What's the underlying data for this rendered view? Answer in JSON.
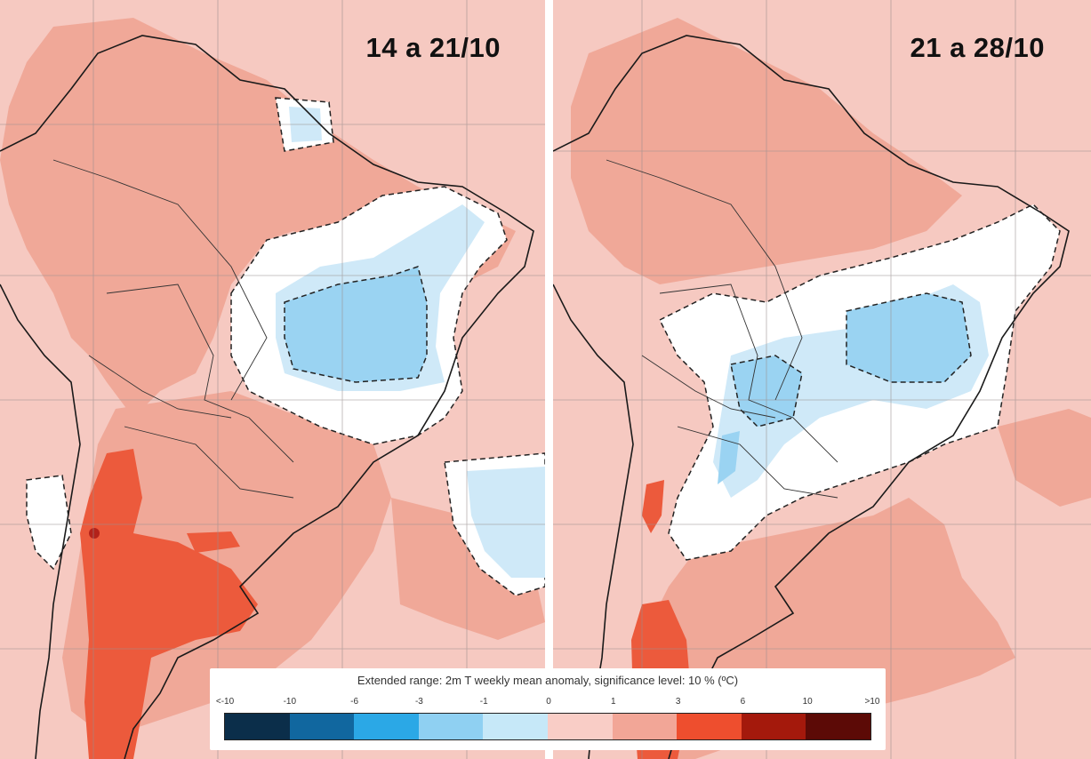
{
  "panels": [
    {
      "title": "14 a 21/10"
    },
    {
      "title": "21 a 28/10"
    }
  ],
  "legend": {
    "title": "Extended range: 2m T weekly mean anomaly, significance level: 10 % (ºC)",
    "ticks": [
      "<-10",
      "-10",
      "-6",
      "-3",
      "-1",
      "0",
      "1",
      "3",
      "6",
      "10",
      ">10"
    ],
    "colors": [
      "#0b2e4a",
      "#11679f",
      "#2ba8e6",
      "#8fd0f2",
      "#c6e8f8",
      "#f9cdc6",
      "#f2a697",
      "#ee4e2e",
      "#a4190c",
      "#5c0a06"
    ]
  },
  "map_colors": {
    "ocean_neutral": "#f6c9c1",
    "warm_light": "#f0a898",
    "warm_strong": "#ec5a3c",
    "warm_dark": "#b3221a",
    "cool_light": "#cfe9f8",
    "cool_medium": "#9ad3f2",
    "neutral": "#ffffff"
  }
}
